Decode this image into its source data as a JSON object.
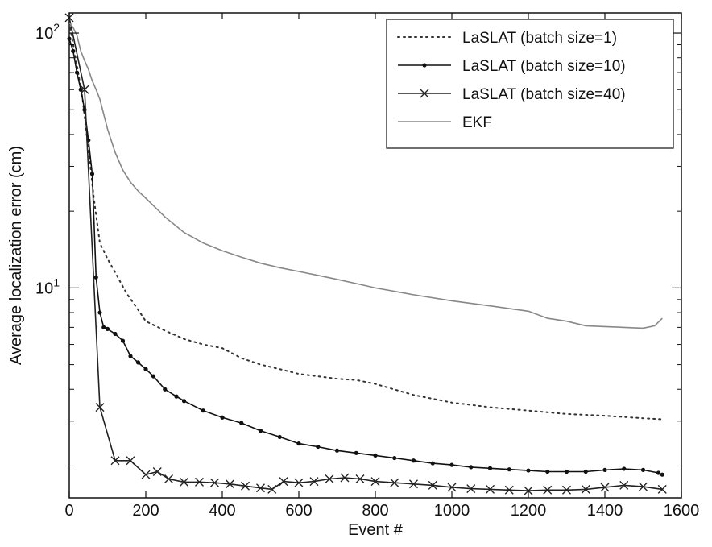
{
  "chart_data": {
    "type": "line",
    "title": "",
    "xlabel": "Event #",
    "ylabel": "Average localization error (cm)",
    "xlim": [
      0,
      1600
    ],
    "ylim": [
      1.5,
      120
    ],
    "yscale": "log",
    "grid": false,
    "legend_position": "top-right",
    "x_ticks": [
      "0",
      "200",
      "400",
      "600",
      "800",
      "1000",
      "1200",
      "1400",
      "1600"
    ],
    "y_ticks": [
      {
        "value": 10,
        "base": "10",
        "exp": "1"
      },
      {
        "value": 100,
        "base": "10",
        "exp": "2"
      }
    ],
    "series": [
      {
        "name": "LaSLAT (batch size=1)",
        "style": "dotted",
        "color": "#333333",
        "marker": "none",
        "x": [
          0,
          10,
          20,
          35,
          50,
          65,
          80,
          100,
          120,
          150,
          180,
          200,
          250,
          300,
          350,
          400,
          450,
          500,
          550,
          600,
          650,
          700,
          750,
          800,
          900,
          1000,
          1100,
          1200,
          1300,
          1400,
          1500,
          1550
        ],
        "y": [
          110,
          90,
          75,
          55,
          35,
          22,
          15,
          13,
          11.5,
          9.5,
          8.2,
          7.4,
          6.8,
          6.3,
          6.0,
          5.8,
          5.3,
          5.0,
          4.8,
          4.6,
          4.5,
          4.4,
          4.35,
          4.2,
          3.8,
          3.55,
          3.4,
          3.3,
          3.2,
          3.15,
          3.08,
          3.05
        ]
      },
      {
        "name": "LaSLAT (batch size=10)",
        "style": "solid",
        "color": "#111111",
        "marker": "dot",
        "x": [
          0,
          10,
          20,
          30,
          40,
          50,
          60,
          70,
          80,
          90,
          100,
          120,
          140,
          160,
          180,
          200,
          220,
          250,
          280,
          300,
          350,
          400,
          450,
          500,
          550,
          600,
          650,
          700,
          750,
          800,
          850,
          900,
          950,
          1000,
          1050,
          1100,
          1150,
          1200,
          1250,
          1300,
          1350,
          1400,
          1450,
          1500,
          1540,
          1550
        ],
        "y": [
          95,
          85,
          70,
          60,
          50,
          38,
          28,
          11,
          8,
          7.0,
          6.9,
          6.6,
          6.2,
          5.4,
          5.1,
          4.8,
          4.5,
          4.0,
          3.75,
          3.6,
          3.3,
          3.1,
          2.95,
          2.75,
          2.6,
          2.45,
          2.38,
          2.3,
          2.25,
          2.2,
          2.15,
          2.1,
          2.05,
          2.02,
          1.98,
          1.96,
          1.94,
          1.92,
          1.9,
          1.9,
          1.9,
          1.93,
          1.95,
          1.93,
          1.88,
          1.85
        ]
      },
      {
        "name": "LaSLAT (batch size=40)",
        "style": "solid",
        "color": "#222222",
        "marker": "x",
        "x": [
          0,
          40,
          80,
          120,
          160,
          200,
          230,
          260,
          300,
          340,
          380,
          420,
          460,
          500,
          530,
          560,
          600,
          640,
          680,
          720,
          760,
          800,
          850,
          900,
          950,
          1000,
          1050,
          1100,
          1150,
          1200,
          1250,
          1300,
          1350,
          1400,
          1450,
          1500,
          1550
        ],
        "y": [
          115,
          60,
          3.4,
          2.1,
          2.1,
          1.85,
          1.9,
          1.78,
          1.73,
          1.73,
          1.72,
          1.7,
          1.67,
          1.64,
          1.62,
          1.74,
          1.72,
          1.74,
          1.78,
          1.8,
          1.78,
          1.74,
          1.72,
          1.7,
          1.68,
          1.65,
          1.63,
          1.62,
          1.61,
          1.6,
          1.61,
          1.61,
          1.62,
          1.65,
          1.68,
          1.66,
          1.62
        ]
      },
      {
        "name": "EKF",
        "style": "solid",
        "color": "#888888",
        "marker": "none",
        "x": [
          0,
          10,
          20,
          30,
          40,
          50,
          60,
          70,
          80,
          100,
          120,
          140,
          160,
          180,
          200,
          250,
          300,
          350,
          400,
          450,
          500,
          550,
          600,
          650,
          700,
          750,
          800,
          900,
          1000,
          1100,
          1200,
          1250,
          1300,
          1350,
          1400,
          1450,
          1500,
          1530,
          1550
        ],
        "y": [
          110,
          105,
          98,
          85,
          78,
          72,
          65,
          60,
          55,
          42,
          34,
          29,
          26,
          24,
          22.5,
          19,
          16.5,
          15,
          14,
          13.2,
          12.5,
          12.0,
          11.6,
          11.2,
          10.8,
          10.4,
          10.0,
          9.4,
          8.9,
          8.5,
          8.1,
          7.6,
          7.4,
          7.1,
          7.05,
          7.0,
          6.95,
          7.1,
          7.6
        ]
      }
    ]
  }
}
